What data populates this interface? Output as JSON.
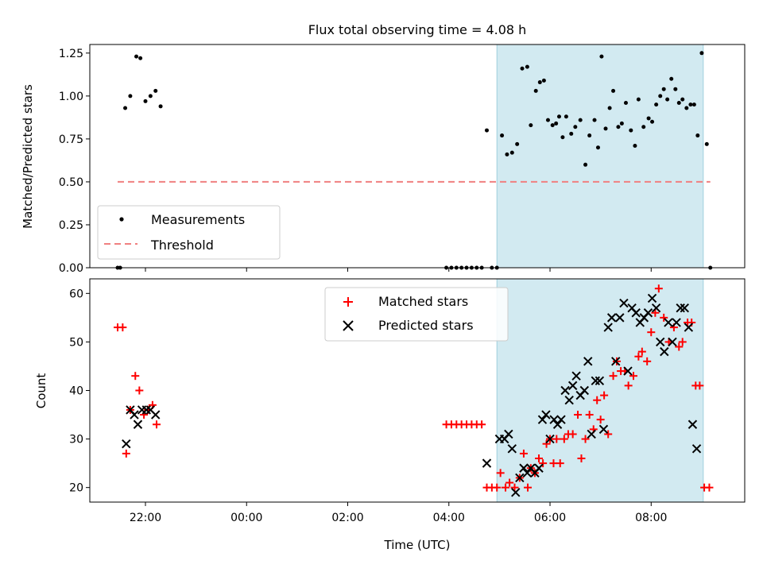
{
  "chart_data": [
    {
      "type": "scatter",
      "title": "Flux total observing time = 4.08 h",
      "ylabel": "Matched/Predicted stars",
      "xlabel": "",
      "ylim": [
        0,
        1.3
      ],
      "y_ticks": [
        "0.00",
        "0.25",
        "0.50",
        "0.75",
        "1.00",
        "1.25"
      ],
      "shaded_region_hours": [
        4.95,
        9.03
      ],
      "shaded_color": "#add8e6",
      "legend_position": "lower-left",
      "series": [
        {
          "name": "Measurements",
          "marker": "dot",
          "color": "#000000",
          "points": [
            [
              -2.55,
              0.0
            ],
            [
              -2.5,
              0.0
            ],
            [
              -2.4,
              0.93
            ],
            [
              -2.3,
              1.0
            ],
            [
              -2.18,
              1.23
            ],
            [
              -2.1,
              1.22
            ],
            [
              -2.0,
              0.97
            ],
            [
              -1.9,
              1.0
            ],
            [
              -1.8,
              1.03
            ],
            [
              -1.7,
              0.94
            ],
            [
              3.95,
              0.0
            ],
            [
              4.05,
              0.0
            ],
            [
              4.15,
              0.0
            ],
            [
              4.25,
              0.0
            ],
            [
              4.35,
              0.0
            ],
            [
              4.45,
              0.0
            ],
            [
              4.55,
              0.0
            ],
            [
              4.65,
              0.0
            ],
            [
              4.75,
              0.8
            ],
            [
              4.85,
              0.0
            ],
            [
              4.95,
              0.0
            ],
            [
              5.05,
              0.77
            ],
            [
              5.15,
              0.66
            ],
            [
              5.25,
              0.67
            ],
            [
              5.35,
              0.72
            ],
            [
              5.45,
              1.16
            ],
            [
              5.55,
              1.17
            ],
            [
              5.62,
              0.83
            ],
            [
              5.72,
              1.03
            ],
            [
              5.8,
              1.08
            ],
            [
              5.88,
              1.09
            ],
            [
              5.96,
              0.86
            ],
            [
              6.05,
              0.83
            ],
            [
              6.12,
              0.84
            ],
            [
              6.18,
              0.88
            ],
            [
              6.25,
              0.76
            ],
            [
              6.32,
              0.88
            ],
            [
              6.42,
              0.78
            ],
            [
              6.5,
              0.82
            ],
            [
              6.6,
              0.86
            ],
            [
              6.7,
              0.6
            ],
            [
              6.78,
              0.77
            ],
            [
              6.88,
              0.86
            ],
            [
              6.95,
              0.7
            ],
            [
              7.02,
              1.23
            ],
            [
              7.1,
              0.81
            ],
            [
              7.18,
              0.93
            ],
            [
              7.25,
              1.03
            ],
            [
              7.35,
              0.82
            ],
            [
              7.42,
              0.84
            ],
            [
              7.5,
              0.96
            ],
            [
              7.6,
              0.8
            ],
            [
              7.68,
              0.71
            ],
            [
              7.75,
              0.98
            ],
            [
              7.85,
              0.82
            ],
            [
              7.95,
              0.87
            ],
            [
              8.02,
              0.85
            ],
            [
              8.1,
              0.95
            ],
            [
              8.18,
              1.0
            ],
            [
              8.25,
              1.04
            ],
            [
              8.32,
              0.98
            ],
            [
              8.4,
              1.1
            ],
            [
              8.48,
              1.04
            ],
            [
              8.55,
              0.96
            ],
            [
              8.62,
              0.98
            ],
            [
              8.7,
              0.93
            ],
            [
              8.78,
              0.95
            ],
            [
              8.85,
              0.95
            ],
            [
              8.92,
              0.77
            ],
            [
              9.0,
              1.25
            ],
            [
              9.1,
              0.72
            ],
            [
              9.17,
              0.0
            ]
          ]
        },
        {
          "name": "Threshold",
          "marker": "dashed-line",
          "color": "#f08080",
          "x_range": [
            -2.55,
            9.17
          ],
          "value": 0.5
        }
      ]
    },
    {
      "type": "scatter",
      "title": "",
      "ylabel": "Count",
      "xlabel": "Time (UTC)",
      "ylim": [
        17,
        63
      ],
      "y_ticks": [
        "20",
        "30",
        "40",
        "50",
        "60"
      ],
      "x_ticks": [
        "22:00",
        "00:00",
        "02:00",
        "04:00",
        "06:00",
        "08:00"
      ],
      "x_tick_hours": [
        -2,
        0,
        2,
        4,
        6,
        8
      ],
      "xlim_hours": [
        -3.1,
        9.85
      ],
      "shaded_region_hours": [
        4.95,
        9.03
      ],
      "shaded_color": "#add8e6",
      "legend_position": "upper-center",
      "series": [
        {
          "name": "Matched stars",
          "marker": "plus",
          "color": "#ff0000",
          "points": [
            [
              -2.55,
              53
            ],
            [
              -2.45,
              53
            ],
            [
              -2.38,
              27
            ],
            [
              -2.3,
              36
            ],
            [
              -2.2,
              43
            ],
            [
              -2.12,
              40
            ],
            [
              -2.03,
              35
            ],
            [
              -1.95,
              36
            ],
            [
              -1.86,
              37
            ],
            [
              -1.78,
              33
            ],
            [
              3.95,
              33
            ],
            [
              4.05,
              33
            ],
            [
              4.15,
              33
            ],
            [
              4.25,
              33
            ],
            [
              4.35,
              33
            ],
            [
              4.45,
              33
            ],
            [
              4.55,
              33
            ],
            [
              4.65,
              33
            ],
            [
              4.75,
              20
            ],
            [
              4.85,
              20
            ],
            [
              4.95,
              20
            ],
            [
              5.02,
              23
            ],
            [
              5.12,
              20
            ],
            [
              5.2,
              21
            ],
            [
              5.3,
              20
            ],
            [
              5.4,
              22
            ],
            [
              5.48,
              27
            ],
            [
              5.56,
              20
            ],
            [
              5.62,
              24
            ],
            [
              5.7,
              23
            ],
            [
              5.78,
              26
            ],
            [
              5.86,
              25
            ],
            [
              5.93,
              29
            ],
            [
              6.0,
              30
            ],
            [
              6.07,
              25
            ],
            [
              6.13,
              30
            ],
            [
              6.2,
              25
            ],
            [
              6.28,
              30
            ],
            [
              6.36,
              31
            ],
            [
              6.45,
              31
            ],
            [
              6.55,
              35
            ],
            [
              6.62,
              26
            ],
            [
              6.7,
              30
            ],
            [
              6.78,
              35
            ],
            [
              6.86,
              32
            ],
            [
              6.93,
              38
            ],
            [
              7.0,
              34
            ],
            [
              7.07,
              39
            ],
            [
              7.15,
              31
            ],
            [
              7.25,
              43
            ],
            [
              7.32,
              46
            ],
            [
              7.4,
              44
            ],
            [
              7.48,
              44
            ],
            [
              7.55,
              41
            ],
            [
              7.65,
              43
            ],
            [
              7.75,
              47
            ],
            [
              7.82,
              48
            ],
            [
              7.92,
              46
            ],
            [
              8.0,
              52
            ],
            [
              8.08,
              56
            ],
            [
              8.15,
              61
            ],
            [
              8.25,
              55
            ],
            [
              8.35,
              50
            ],
            [
              8.45,
              53
            ],
            [
              8.55,
              49
            ],
            [
              8.62,
              50
            ],
            [
              8.72,
              54
            ],
            [
              8.8,
              54
            ],
            [
              8.88,
              41
            ],
            [
              8.96,
              41
            ],
            [
              9.05,
              20
            ],
            [
              9.15,
              20
            ]
          ]
        },
        {
          "name": "Predicted stars",
          "marker": "x",
          "color": "#000000",
          "points": [
            [
              -2.38,
              29
            ],
            [
              -2.3,
              36
            ],
            [
              -2.22,
              35
            ],
            [
              -2.15,
              33
            ],
            [
              -2.07,
              36
            ],
            [
              -1.98,
              36
            ],
            [
              -1.9,
              36
            ],
            [
              -1.8,
              35
            ],
            [
              4.75,
              25
            ],
            [
              5.0,
              30
            ],
            [
              5.1,
              30
            ],
            [
              5.18,
              31
            ],
            [
              5.25,
              28
            ],
            [
              5.32,
              19
            ],
            [
              5.4,
              22
            ],
            [
              5.48,
              24
            ],
            [
              5.55,
              23
            ],
            [
              5.62,
              24
            ],
            [
              5.7,
              23
            ],
            [
              5.78,
              24
            ],
            [
              5.85,
              34
            ],
            [
              5.92,
              35
            ],
            [
              6.0,
              30
            ],
            [
              6.08,
              34
            ],
            [
              6.15,
              33
            ],
            [
              6.22,
              34
            ],
            [
              6.3,
              40
            ],
            [
              6.38,
              38
            ],
            [
              6.45,
              41
            ],
            [
              6.52,
              43
            ],
            [
              6.6,
              39
            ],
            [
              6.68,
              40
            ],
            [
              6.75,
              46
            ],
            [
              6.82,
              31
            ],
            [
              6.9,
              42
            ],
            [
              6.98,
              42
            ],
            [
              7.06,
              32
            ],
            [
              7.15,
              53
            ],
            [
              7.22,
              55
            ],
            [
              7.3,
              46
            ],
            [
              7.38,
              55
            ],
            [
              7.46,
              58
            ],
            [
              7.54,
              44
            ],
            [
              7.62,
              57
            ],
            [
              7.7,
              56
            ],
            [
              7.78,
              54
            ],
            [
              7.86,
              55
            ],
            [
              7.94,
              56
            ],
            [
              8.02,
              59
            ],
            [
              8.1,
              57
            ],
            [
              8.18,
              50
            ],
            [
              8.26,
              48
            ],
            [
              8.34,
              54
            ],
            [
              8.42,
              50
            ],
            [
              8.5,
              54
            ],
            [
              8.58,
              57
            ],
            [
              8.66,
              57
            ],
            [
              8.74,
              53
            ],
            [
              8.82,
              33
            ],
            [
              8.9,
              28
            ]
          ]
        }
      ]
    }
  ]
}
